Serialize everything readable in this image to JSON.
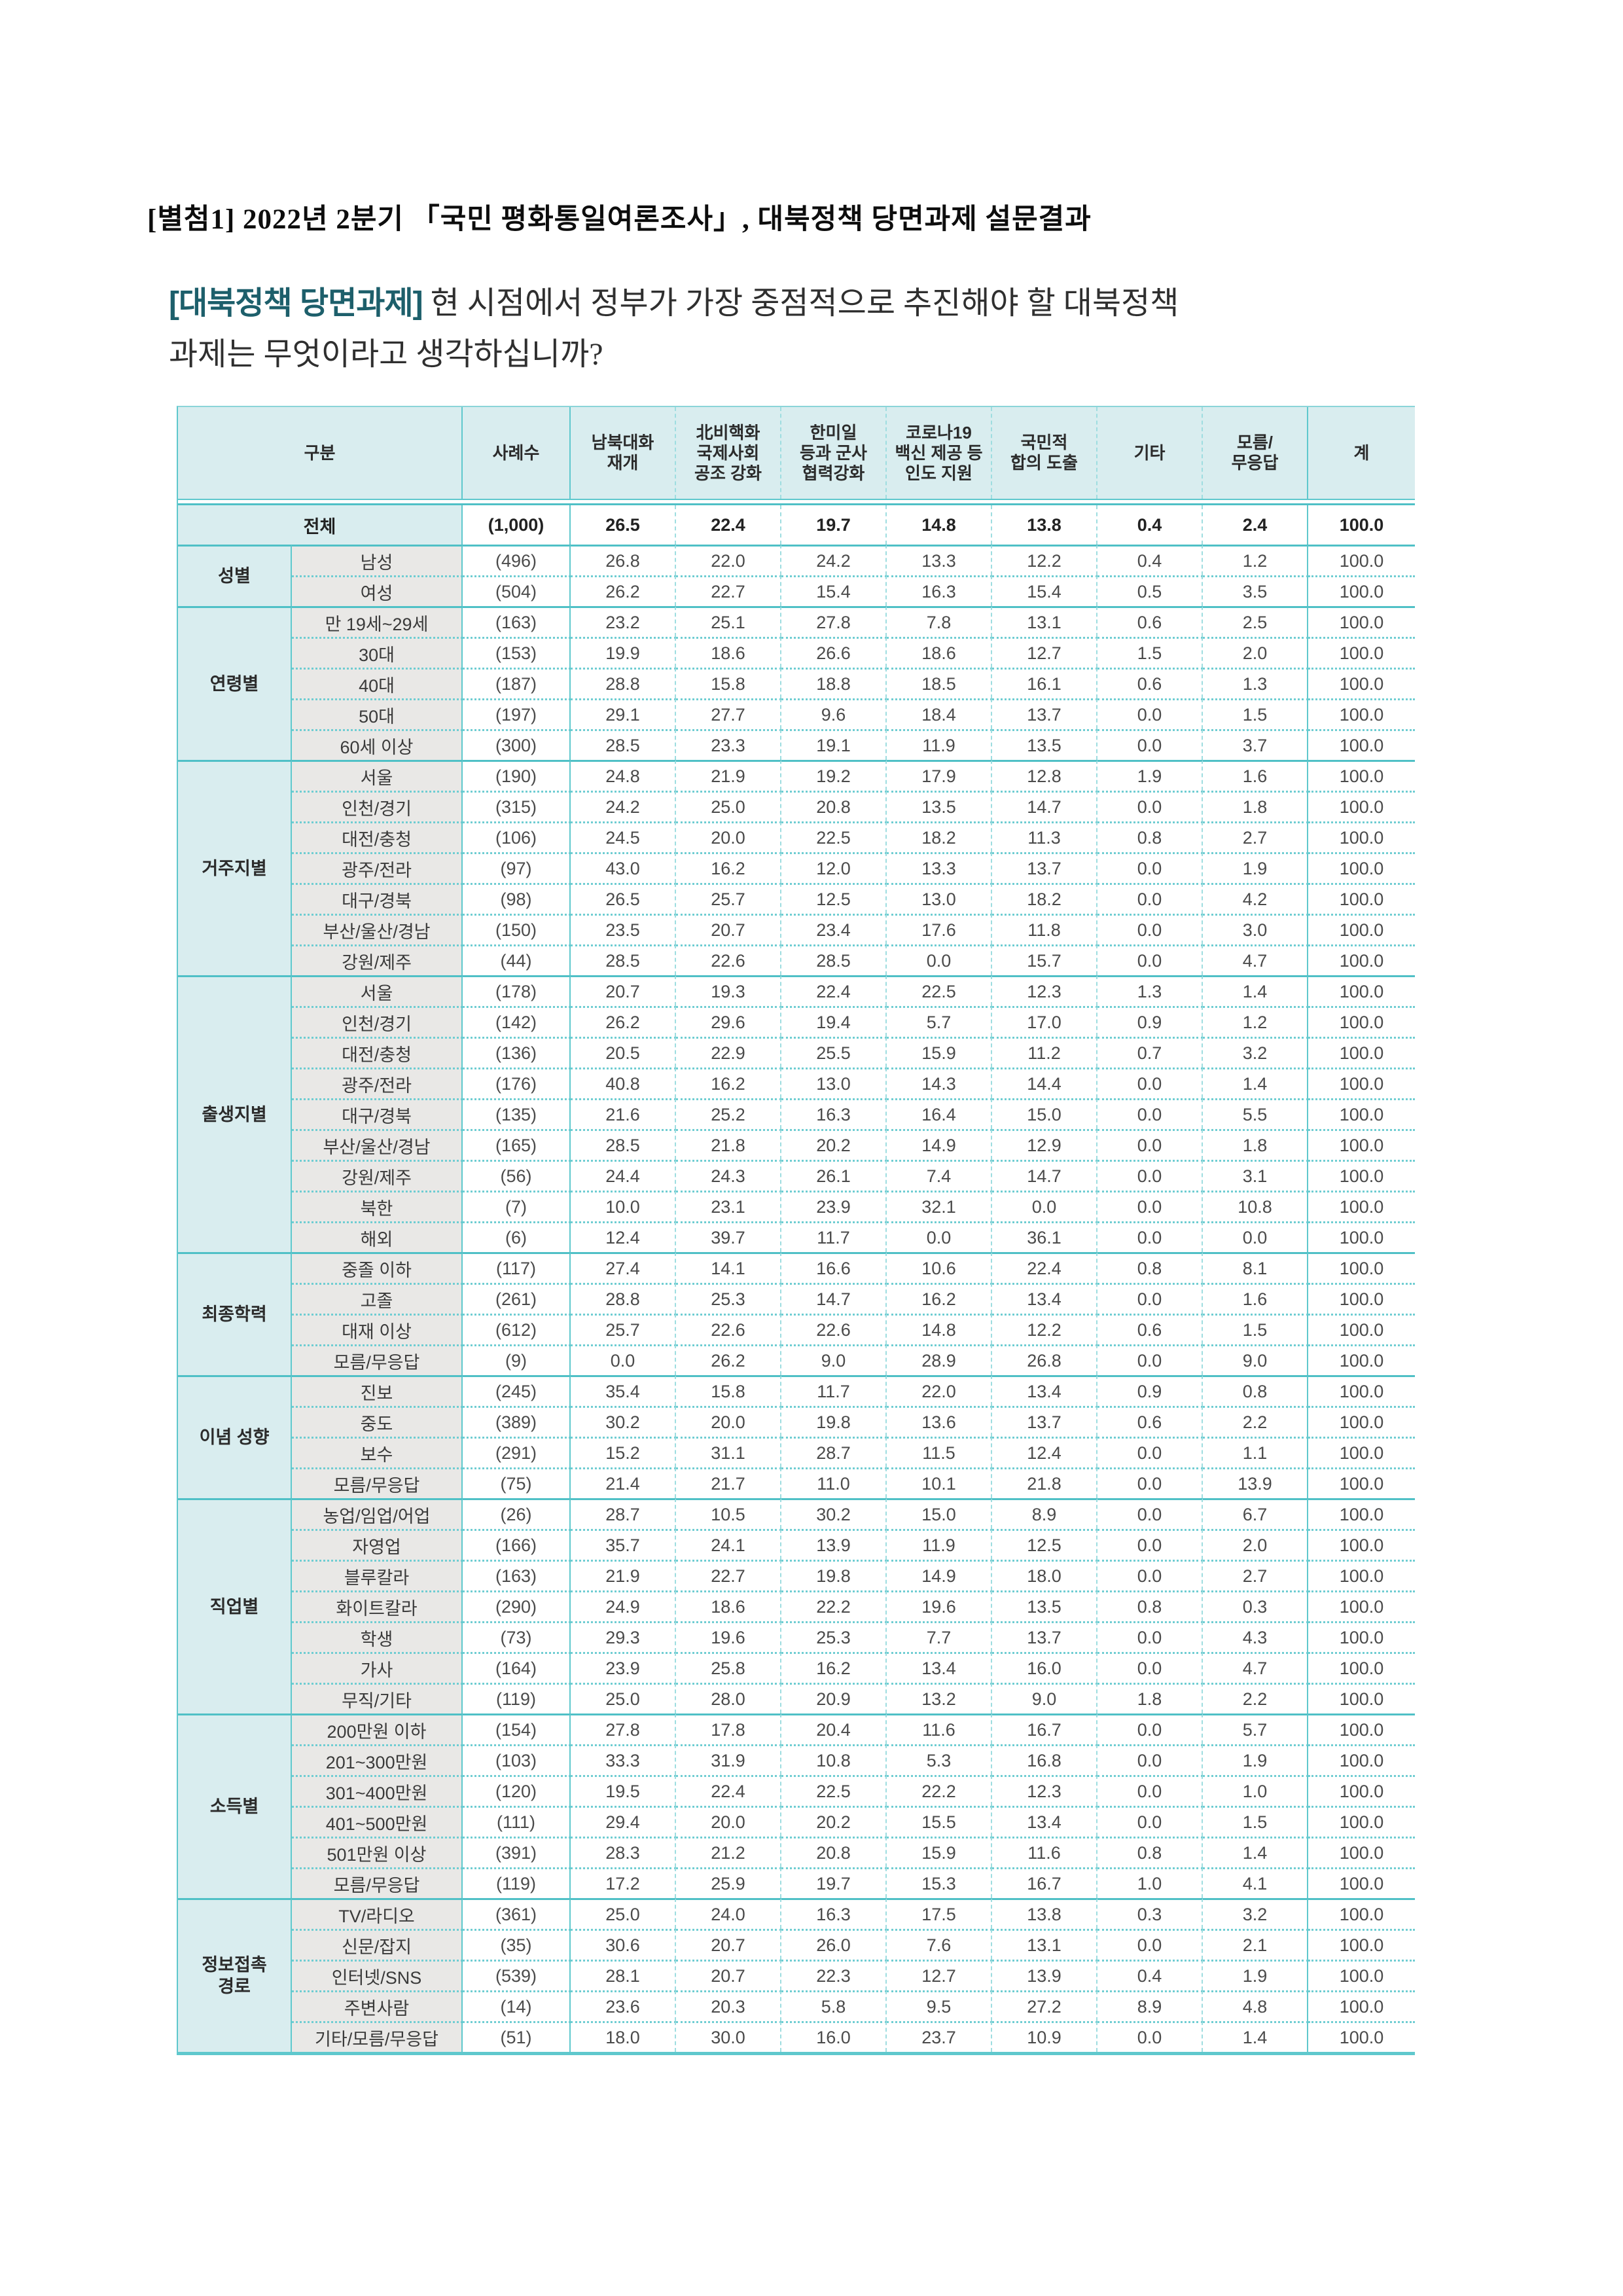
{
  "page": {
    "attachment_title": "[별첨1] 2022년 2분기 「국민 평화통일여론조사」, 대북정책 당면과제 설문결과",
    "question_tag": "[대북정책 당면과제]",
    "question_line1": "현 시점에서 정부가 가장 중점적으로 추진해야 할 대북정책",
    "question_line2": "과제는 무엇이라고 생각하십니까?"
  },
  "colors": {
    "border_teal": "#5fc8cd",
    "border_teal_dark": "#4fc0c6",
    "border_teal_dashed": "#9edde0",
    "header_bg": "#d9edef",
    "sublabel_bg": "#e9e8e6",
    "question_tag_teal": "#1d5f6b"
  },
  "table": {
    "columns": [
      {
        "id": "gubun",
        "label": "구분"
      },
      {
        "id": "cases",
        "label": "사례수"
      },
      {
        "id": "dialogue-resume",
        "label": "남북대화\n재개"
      },
      {
        "id": "denuclearization",
        "label": "北비핵화\n국제사회\n공조 강화"
      },
      {
        "id": "military-coop",
        "label": "한미일\n등과 군사\n협력강화"
      },
      {
        "id": "humanitarian-aid",
        "label": "코로나19\n백신 제공 등\n인도 지원"
      },
      {
        "id": "national-consensus",
        "label": "국민적\n합의 도출"
      },
      {
        "id": "etc",
        "label": "기타"
      },
      {
        "id": "dont-know",
        "label": "모름/\n무응답"
      },
      {
        "id": "sum",
        "label": "계"
      }
    ],
    "total_row": {
      "label": "전체",
      "cases": "(1,000)",
      "values": [
        "26.5",
        "22.4",
        "19.7",
        "14.8",
        "13.8",
        "0.4",
        "2.4",
        "100.0"
      ]
    },
    "groups": [
      {
        "label": "성별",
        "rows": [
          {
            "label": "남성",
            "cases": "(496)",
            "values": [
              "26.8",
              "22.0",
              "24.2",
              "13.3",
              "12.2",
              "0.4",
              "1.2",
              "100.0"
            ]
          },
          {
            "label": "여성",
            "cases": "(504)",
            "values": [
              "26.2",
              "22.7",
              "15.4",
              "16.3",
              "15.4",
              "0.5",
              "3.5",
              "100.0"
            ]
          }
        ]
      },
      {
        "label": "연령별",
        "rows": [
          {
            "label": "만 19세~29세",
            "cases": "(163)",
            "values": [
              "23.2",
              "25.1",
              "27.8",
              "7.8",
              "13.1",
              "0.6",
              "2.5",
              "100.0"
            ]
          },
          {
            "label": "30대",
            "cases": "(153)",
            "values": [
              "19.9",
              "18.6",
              "26.6",
              "18.6",
              "12.7",
              "1.5",
              "2.0",
              "100.0"
            ]
          },
          {
            "label": "40대",
            "cases": "(187)",
            "values": [
              "28.8",
              "15.8",
              "18.8",
              "18.5",
              "16.1",
              "0.6",
              "1.3",
              "100.0"
            ]
          },
          {
            "label": "50대",
            "cases": "(197)",
            "values": [
              "29.1",
              "27.7",
              "9.6",
              "18.4",
              "13.7",
              "0.0",
              "1.5",
              "100.0"
            ]
          },
          {
            "label": "60세 이상",
            "cases": "(300)",
            "values": [
              "28.5",
              "23.3",
              "19.1",
              "11.9",
              "13.5",
              "0.0",
              "3.7",
              "100.0"
            ]
          }
        ]
      },
      {
        "label": "거주지별",
        "rows": [
          {
            "label": "서울",
            "cases": "(190)",
            "values": [
              "24.8",
              "21.9",
              "19.2",
              "17.9",
              "12.8",
              "1.9",
              "1.6",
              "100.0"
            ]
          },
          {
            "label": "인천/경기",
            "cases": "(315)",
            "values": [
              "24.2",
              "25.0",
              "20.8",
              "13.5",
              "14.7",
              "0.0",
              "1.8",
              "100.0"
            ]
          },
          {
            "label": "대전/충청",
            "cases": "(106)",
            "values": [
              "24.5",
              "20.0",
              "22.5",
              "18.2",
              "11.3",
              "0.8",
              "2.7",
              "100.0"
            ]
          },
          {
            "label": "광주/전라",
            "cases": "(97)",
            "values": [
              "43.0",
              "16.2",
              "12.0",
              "13.3",
              "13.7",
              "0.0",
              "1.9",
              "100.0"
            ]
          },
          {
            "label": "대구/경북",
            "cases": "(98)",
            "values": [
              "26.5",
              "25.7",
              "12.5",
              "13.0",
              "18.2",
              "0.0",
              "4.2",
              "100.0"
            ]
          },
          {
            "label": "부산/울산/경남",
            "cases": "(150)",
            "values": [
              "23.5",
              "20.7",
              "23.4",
              "17.6",
              "11.8",
              "0.0",
              "3.0",
              "100.0"
            ]
          },
          {
            "label": "강원/제주",
            "cases": "(44)",
            "values": [
              "28.5",
              "22.6",
              "28.5",
              "0.0",
              "15.7",
              "0.0",
              "4.7",
              "100.0"
            ]
          }
        ]
      },
      {
        "label": "출생지별",
        "rows": [
          {
            "label": "서울",
            "cases": "(178)",
            "values": [
              "20.7",
              "19.3",
              "22.4",
              "22.5",
              "12.3",
              "1.3",
              "1.4",
              "100.0"
            ]
          },
          {
            "label": "인천/경기",
            "cases": "(142)",
            "values": [
              "26.2",
              "29.6",
              "19.4",
              "5.7",
              "17.0",
              "0.9",
              "1.2",
              "100.0"
            ]
          },
          {
            "label": "대전/충청",
            "cases": "(136)",
            "values": [
              "20.5",
              "22.9",
              "25.5",
              "15.9",
              "11.2",
              "0.7",
              "3.2",
              "100.0"
            ]
          },
          {
            "label": "광주/전라",
            "cases": "(176)",
            "values": [
              "40.8",
              "16.2",
              "13.0",
              "14.3",
              "14.4",
              "0.0",
              "1.4",
              "100.0"
            ]
          },
          {
            "label": "대구/경북",
            "cases": "(135)",
            "values": [
              "21.6",
              "25.2",
              "16.3",
              "16.4",
              "15.0",
              "0.0",
              "5.5",
              "100.0"
            ]
          },
          {
            "label": "부산/울산/경남",
            "cases": "(165)",
            "values": [
              "28.5",
              "21.8",
              "20.2",
              "14.9",
              "12.9",
              "0.0",
              "1.8",
              "100.0"
            ]
          },
          {
            "label": "강원/제주",
            "cases": "(56)",
            "values": [
              "24.4",
              "24.3",
              "26.1",
              "7.4",
              "14.7",
              "0.0",
              "3.1",
              "100.0"
            ]
          },
          {
            "label": "북한",
            "cases": "(7)",
            "values": [
              "10.0",
              "23.1",
              "23.9",
              "32.1",
              "0.0",
              "0.0",
              "10.8",
              "100.0"
            ]
          },
          {
            "label": "해외",
            "cases": "(6)",
            "values": [
              "12.4",
              "39.7",
              "11.7",
              "0.0",
              "36.1",
              "0.0",
              "0.0",
              "100.0"
            ]
          }
        ]
      },
      {
        "label": "최종학력",
        "rows": [
          {
            "label": "중졸 이하",
            "cases": "(117)",
            "values": [
              "27.4",
              "14.1",
              "16.6",
              "10.6",
              "22.4",
              "0.8",
              "8.1",
              "100.0"
            ]
          },
          {
            "label": "고졸",
            "cases": "(261)",
            "values": [
              "28.8",
              "25.3",
              "14.7",
              "16.2",
              "13.4",
              "0.0",
              "1.6",
              "100.0"
            ]
          },
          {
            "label": "대재 이상",
            "cases": "(612)",
            "values": [
              "25.7",
              "22.6",
              "22.6",
              "14.8",
              "12.2",
              "0.6",
              "1.5",
              "100.0"
            ]
          },
          {
            "label": "모름/무응답",
            "cases": "(9)",
            "values": [
              "0.0",
              "26.2",
              "9.0",
              "28.9",
              "26.8",
              "0.0",
              "9.0",
              "100.0"
            ]
          }
        ]
      },
      {
        "label": "이념 성향",
        "rows": [
          {
            "label": "진보",
            "cases": "(245)",
            "values": [
              "35.4",
              "15.8",
              "11.7",
              "22.0",
              "13.4",
              "0.9",
              "0.8",
              "100.0"
            ]
          },
          {
            "label": "중도",
            "cases": "(389)",
            "values": [
              "30.2",
              "20.0",
              "19.8",
              "13.6",
              "13.7",
              "0.6",
              "2.2",
              "100.0"
            ]
          },
          {
            "label": "보수",
            "cases": "(291)",
            "values": [
              "15.2",
              "31.1",
              "28.7",
              "11.5",
              "12.4",
              "0.0",
              "1.1",
              "100.0"
            ]
          },
          {
            "label": "모름/무응답",
            "cases": "(75)",
            "values": [
              "21.4",
              "21.7",
              "11.0",
              "10.1",
              "21.8",
              "0.0",
              "13.9",
              "100.0"
            ]
          }
        ]
      },
      {
        "label": "직업별",
        "rows": [
          {
            "label": "농업/임업/어업",
            "cases": "(26)",
            "values": [
              "28.7",
              "10.5",
              "30.2",
              "15.0",
              "8.9",
              "0.0",
              "6.7",
              "100.0"
            ]
          },
          {
            "label": "자영업",
            "cases": "(166)",
            "values": [
              "35.7",
              "24.1",
              "13.9",
              "11.9",
              "12.5",
              "0.0",
              "2.0",
              "100.0"
            ]
          },
          {
            "label": "블루칼라",
            "cases": "(163)",
            "values": [
              "21.9",
              "22.7",
              "19.8",
              "14.9",
              "18.0",
              "0.0",
              "2.7",
              "100.0"
            ]
          },
          {
            "label": "화이트칼라",
            "cases": "(290)",
            "values": [
              "24.9",
              "18.6",
              "22.2",
              "19.6",
              "13.5",
              "0.8",
              "0.3",
              "100.0"
            ]
          },
          {
            "label": "학생",
            "cases": "(73)",
            "values": [
              "29.3",
              "19.6",
              "25.3",
              "7.7",
              "13.7",
              "0.0",
              "4.3",
              "100.0"
            ]
          },
          {
            "label": "가사",
            "cases": "(164)",
            "values": [
              "23.9",
              "25.8",
              "16.2",
              "13.4",
              "16.0",
              "0.0",
              "4.7",
              "100.0"
            ]
          },
          {
            "label": "무직/기타",
            "cases": "(119)",
            "values": [
              "25.0",
              "28.0",
              "20.9",
              "13.2",
              "9.0",
              "1.8",
              "2.2",
              "100.0"
            ]
          }
        ]
      },
      {
        "label": "소득별",
        "rows": [
          {
            "label": "200만원 이하",
            "cases": "(154)",
            "values": [
              "27.8",
              "17.8",
              "20.4",
              "11.6",
              "16.7",
              "0.0",
              "5.7",
              "100.0"
            ]
          },
          {
            "label": "201~300만원",
            "cases": "(103)",
            "values": [
              "33.3",
              "31.9",
              "10.8",
              "5.3",
              "16.8",
              "0.0",
              "1.9",
              "100.0"
            ]
          },
          {
            "label": "301~400만원",
            "cases": "(120)",
            "values": [
              "19.5",
              "22.4",
              "22.5",
              "22.2",
              "12.3",
              "0.0",
              "1.0",
              "100.0"
            ]
          },
          {
            "label": "401~500만원",
            "cases": "(111)",
            "values": [
              "29.4",
              "20.0",
              "20.2",
              "15.5",
              "13.4",
              "0.0",
              "1.5",
              "100.0"
            ]
          },
          {
            "label": "501만원 이상",
            "cases": "(391)",
            "values": [
              "28.3",
              "21.2",
              "20.8",
              "15.9",
              "11.6",
              "0.8",
              "1.4",
              "100.0"
            ]
          },
          {
            "label": "모름/무응답",
            "cases": "(119)",
            "values": [
              "17.2",
              "25.9",
              "19.7",
              "15.3",
              "16.7",
              "1.0",
              "4.1",
              "100.0"
            ]
          }
        ]
      },
      {
        "label": "정보접촉\n경로",
        "rows": [
          {
            "label": "TV/라디오",
            "cases": "(361)",
            "values": [
              "25.0",
              "24.0",
              "16.3",
              "17.5",
              "13.8",
              "0.3",
              "3.2",
              "100.0"
            ]
          },
          {
            "label": "신문/잡지",
            "cases": "(35)",
            "values": [
              "30.6",
              "20.7",
              "26.0",
              "7.6",
              "13.1",
              "0.0",
              "2.1",
              "100.0"
            ]
          },
          {
            "label": "인터넷/SNS",
            "cases": "(539)",
            "values": [
              "28.1",
              "20.7",
              "22.3",
              "12.7",
              "13.9",
              "0.4",
              "1.9",
              "100.0"
            ]
          },
          {
            "label": "주변사람",
            "cases": "(14)",
            "values": [
              "23.6",
              "20.3",
              "5.8",
              "9.5",
              "27.2",
              "8.9",
              "4.8",
              "100.0"
            ]
          },
          {
            "label": "기타/모름/무응답",
            "cases": "(51)",
            "values": [
              "18.0",
              "30.0",
              "16.0",
              "23.7",
              "10.9",
              "0.0",
              "1.4",
              "100.0"
            ]
          }
        ]
      }
    ]
  }
}
